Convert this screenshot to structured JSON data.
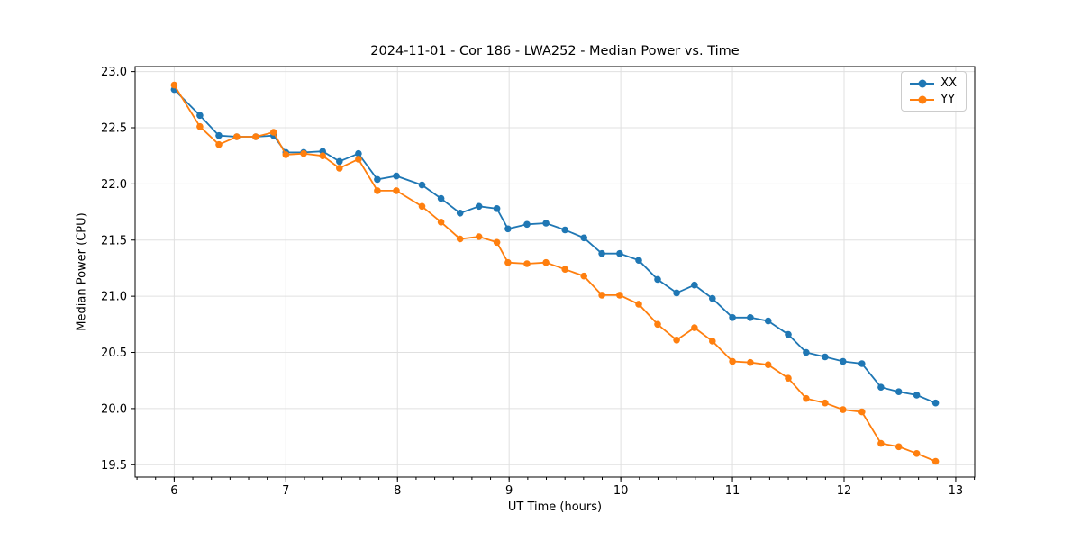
{
  "figure": {
    "background": "#ffffff",
    "grid_color": "#e0e0e0",
    "spine_color": "#000000"
  },
  "chart_data": {
    "type": "line",
    "title": "2024-11-01 - Cor 186 - LWA252 - Median Power vs. Time",
    "xlabel": "UT Time (hours)",
    "ylabel": "Median Power (CPU)",
    "xlim": [
      5.65,
      13.17
    ],
    "ylim": [
      19.39,
      23.045
    ],
    "x_ticks": [
      6,
      7,
      8,
      9,
      10,
      11,
      12,
      13
    ],
    "y_ticks": [
      19.5,
      20.0,
      20.5,
      21.0,
      21.5,
      22.0,
      22.5,
      23.0
    ],
    "x_minor_step": 0.16667,
    "grid": true,
    "legend_position": "upper right",
    "marker": "circle",
    "x": [
      6.0,
      6.23,
      6.4,
      6.56,
      6.73,
      6.89,
      7.0,
      7.16,
      7.33,
      7.48,
      7.65,
      7.82,
      7.99,
      8.22,
      8.39,
      8.56,
      8.73,
      8.89,
      8.99,
      9.16,
      9.33,
      9.5,
      9.67,
      9.83,
      9.99,
      10.16,
      10.33,
      10.5,
      10.66,
      10.82,
      11.0,
      11.16,
      11.32,
      11.5,
      11.66,
      11.83,
      11.99,
      12.16,
      12.33,
      12.49,
      12.65,
      12.82
    ],
    "series": [
      {
        "name": "XX",
        "color": "#1f77b4",
        "values": [
          22.84,
          22.61,
          22.43,
          22.42,
          22.42,
          22.43,
          22.28,
          22.28,
          22.29,
          22.2,
          22.27,
          22.04,
          22.07,
          21.99,
          21.87,
          21.74,
          21.8,
          21.78,
          21.6,
          21.64,
          21.65,
          21.59,
          21.52,
          21.38,
          21.38,
          21.32,
          21.15,
          21.03,
          21.1,
          20.98,
          20.81,
          20.81,
          20.78,
          20.66,
          20.5,
          20.46,
          20.42,
          20.4,
          20.19,
          20.15,
          20.12,
          20.05
        ]
      },
      {
        "name": "YY",
        "color": "#ff7f0e",
        "values": [
          22.88,
          22.51,
          22.35,
          22.42,
          22.42,
          22.46,
          22.26,
          22.27,
          22.25,
          22.14,
          22.22,
          21.94,
          21.94,
          21.8,
          21.66,
          21.51,
          21.53,
          21.48,
          21.3,
          21.29,
          21.3,
          21.24,
          21.18,
          21.01,
          21.01,
          20.93,
          20.75,
          20.61,
          20.72,
          20.6,
          20.42,
          20.41,
          20.39,
          20.27,
          20.09,
          20.05,
          19.99,
          19.97,
          19.69,
          19.66,
          19.6,
          19.53
        ]
      }
    ]
  }
}
